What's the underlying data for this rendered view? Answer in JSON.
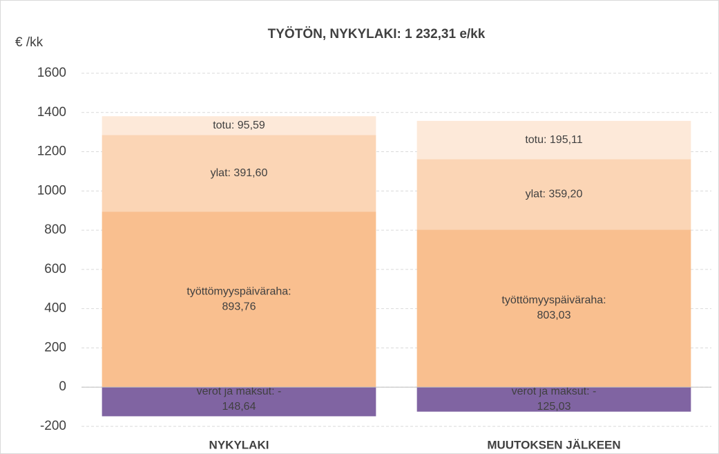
{
  "chart_data": {
    "type": "stacked_bar",
    "title": "TYÖTÖN, NYKYLAKI: 1 232,31 e/kk",
    "y_label": "€ /kk",
    "categories": [
      "NYKYLAKI",
      "MUUTOKSEN JÄLKEEN"
    ],
    "series": [
      {
        "name": "verot ja maksut",
        "color": "#8064a2",
        "values": [
          -148.64,
          -125.03
        ],
        "value_labels": [
          "verot ja maksut: -148,64",
          "verot ja maksut: -125,03"
        ]
      },
      {
        "name": "työttömyyspäiväraha",
        "color": "#f9bf8f",
        "values": [
          893.76,
          803.03
        ],
        "value_labels": [
          "työttömyyspäiväraha: 893,76",
          "työttömyyspäiväraha: 803,03"
        ]
      },
      {
        "name": "ylat",
        "color": "#fbd5b5",
        "values": [
          391.6,
          359.2
        ],
        "value_labels": [
          "ylat: 391,60",
          "ylat: 359,20"
        ]
      },
      {
        "name": "totu",
        "color": "#fde9d9",
        "values": [
          95.59,
          195.11
        ],
        "value_labels": [
          "totu: 95,59",
          "totu: 195,11"
        ]
      }
    ],
    "ylim": [
      -200,
      1600
    ],
    "yticks": [
      -200,
      0,
      200,
      400,
      600,
      800,
      1000,
      1200,
      1400,
      1600
    ],
    "grid": true
  }
}
